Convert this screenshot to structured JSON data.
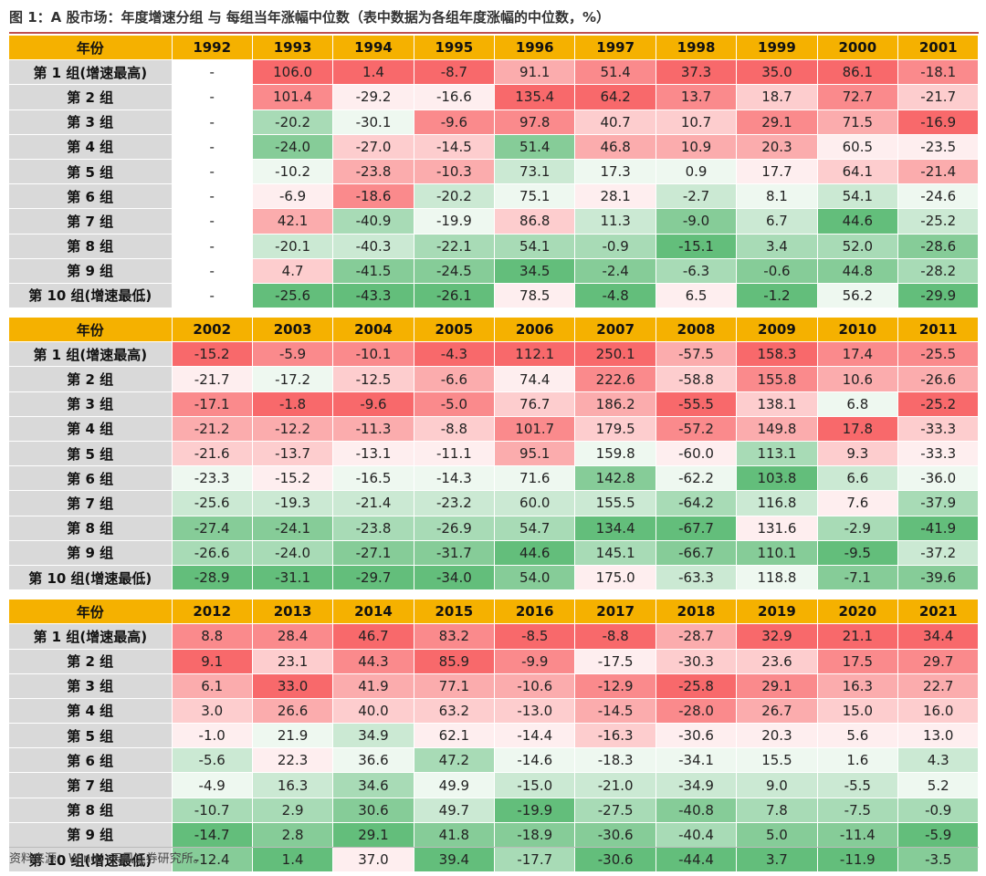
{
  "title": "图 1：A 股市场：年度增速分组 与 每组当年涨幅中位数（表中数据为各组年度涨幅的中位数，%）",
  "source": "资料来源：Wind，天风证券研究所。",
  "chart_data": {
    "type": "heatmap",
    "header_label": "年份",
    "groups": [
      "第 1 组(增速最高)",
      "第 2 组",
      "第 3 组",
      "第 4 组",
      "第 5 组",
      "第 6 组",
      "第 7 组",
      "第 8 组",
      "第 9 组",
      "第 10 组(增速最低)"
    ],
    "colors": {
      "high": "#f8696b",
      "mid": "#ffffff",
      "low": "#63be7b",
      "header": "#f5b100",
      "label_bg": "#d9d9d9"
    },
    "blocks": [
      {
        "years": [
          "1992",
          "1993",
          "1994",
          "1995",
          "1996",
          "1997",
          "1998",
          "1999",
          "2000",
          "2001"
        ],
        "rows": [
          [
            "-",
            "106.0",
            "1.4",
            "-8.7",
            "91.1",
            "51.4",
            "37.3",
            "35.0",
            "86.1",
            "-18.1"
          ],
          [
            "-",
            "101.4",
            "-29.2",
            "-16.6",
            "135.4",
            "64.2",
            "13.7",
            "18.7",
            "72.7",
            "-21.7"
          ],
          [
            "-",
            "-20.2",
            "-30.1",
            "-9.6",
            "97.8",
            "40.7",
            "10.7",
            "29.1",
            "71.5",
            "-16.9"
          ],
          [
            "-",
            "-24.0",
            "-27.0",
            "-14.5",
            "51.4",
            "46.8",
            "10.9",
            "20.3",
            "60.5",
            "-23.5"
          ],
          [
            "-",
            "-10.2",
            "-23.8",
            "-10.3",
            "73.1",
            "17.3",
            "0.9",
            "17.7",
            "64.1",
            "-21.4"
          ],
          [
            "-",
            "-6.9",
            "-18.6",
            "-20.2",
            "75.1",
            "28.1",
            "-2.7",
            "8.1",
            "54.1",
            "-24.6"
          ],
          [
            "-",
            "42.1",
            "-40.9",
            "-19.9",
            "86.8",
            "11.3",
            "-9.0",
            "6.7",
            "44.6",
            "-25.2"
          ],
          [
            "-",
            "-20.1",
            "-40.3",
            "-22.1",
            "54.1",
            "-0.9",
            "-15.1",
            "3.4",
            "52.0",
            "-28.6"
          ],
          [
            "-",
            "4.7",
            "-41.5",
            "-24.5",
            "34.5",
            "-2.4",
            "-6.3",
            "-0.6",
            "44.8",
            "-28.2"
          ],
          [
            "-",
            "-25.6",
            "-43.3",
            "-26.1",
            "78.5",
            "-4.8",
            "6.5",
            "-1.2",
            "56.2",
            "-29.9"
          ]
        ]
      },
      {
        "years": [
          "2002",
          "2003",
          "2004",
          "2005",
          "2006",
          "2007",
          "2008",
          "2009",
          "2010",
          "2011"
        ],
        "rows": [
          [
            "-15.2",
            "-5.9",
            "-10.1",
            "-4.3",
            "112.1",
            "250.1",
            "-57.5",
            "158.3",
            "17.4",
            "-25.5"
          ],
          [
            "-21.7",
            "-17.2",
            "-12.5",
            "-6.6",
            "74.4",
            "222.6",
            "-58.8",
            "155.8",
            "10.6",
            "-26.6"
          ],
          [
            "-17.1",
            "-1.8",
            "-9.6",
            "-5.0",
            "76.7",
            "186.2",
            "-55.5",
            "138.1",
            "6.8",
            "-25.2"
          ],
          [
            "-21.2",
            "-12.2",
            "-11.3",
            "-8.8",
            "101.7",
            "179.5",
            "-57.2",
            "149.8",
            "17.8",
            "-33.3"
          ],
          [
            "-21.6",
            "-13.7",
            "-13.1",
            "-11.1",
            "95.1",
            "159.8",
            "-60.0",
            "113.1",
            "9.3",
            "-33.3"
          ],
          [
            "-23.3",
            "-15.2",
            "-16.5",
            "-14.3",
            "71.6",
            "142.8",
            "-62.2",
            "103.8",
            "6.6",
            "-36.0"
          ],
          [
            "-25.6",
            "-19.3",
            "-21.4",
            "-23.2",
            "60.0",
            "155.5",
            "-64.2",
            "116.8",
            "7.6",
            "-37.9"
          ],
          [
            "-27.4",
            "-24.1",
            "-23.8",
            "-26.9",
            "54.7",
            "134.4",
            "-67.7",
            "131.6",
            "-2.9",
            "-41.9"
          ],
          [
            "-26.6",
            "-24.0",
            "-27.1",
            "-31.7",
            "44.6",
            "145.1",
            "-66.7",
            "110.1",
            "-9.5",
            "-37.2"
          ],
          [
            "-28.9",
            "-31.1",
            "-29.7",
            "-34.0",
            "54.0",
            "175.0",
            "-63.3",
            "118.8",
            "-7.1",
            "-39.6"
          ]
        ]
      },
      {
        "years": [
          "2012",
          "2013",
          "2014",
          "2015",
          "2016",
          "2017",
          "2018",
          "2019",
          "2020",
          "2021"
        ],
        "rows": [
          [
            "8.8",
            "28.4",
            "46.7",
            "83.2",
            "-8.5",
            "-8.8",
            "-28.7",
            "32.9",
            "21.1",
            "34.4"
          ],
          [
            "9.1",
            "23.1",
            "44.3",
            "85.9",
            "-9.9",
            "-17.5",
            "-30.3",
            "23.6",
            "17.5",
            "29.7"
          ],
          [
            "6.1",
            "33.0",
            "41.9",
            "77.1",
            "-10.6",
            "-12.9",
            "-25.8",
            "29.1",
            "16.3",
            "22.7"
          ],
          [
            "3.0",
            "26.6",
            "40.0",
            "63.2",
            "-13.0",
            "-14.5",
            "-28.0",
            "26.7",
            "15.0",
            "16.0"
          ],
          [
            "-1.0",
            "21.9",
            "34.9",
            "62.1",
            "-14.4",
            "-16.3",
            "-30.6",
            "20.3",
            "5.6",
            "13.0"
          ],
          [
            "-5.6",
            "22.3",
            "36.6",
            "47.2",
            "-14.6",
            "-18.3",
            "-34.1",
            "15.5",
            "1.6",
            "4.3"
          ],
          [
            "-4.9",
            "16.3",
            "34.6",
            "49.9",
            "-15.0",
            "-21.0",
            "-34.9",
            "9.0",
            "-5.5",
            "5.2"
          ],
          [
            "-10.7",
            "2.9",
            "30.6",
            "49.7",
            "-19.9",
            "-27.5",
            "-40.8",
            "7.8",
            "-7.5",
            "-0.9"
          ],
          [
            "-14.7",
            "2.8",
            "29.1",
            "41.8",
            "-18.9",
            "-30.6",
            "-40.4",
            "5.0",
            "-11.4",
            "-5.9"
          ],
          [
            "-12.4",
            "1.4",
            "37.0",
            "39.4",
            "-17.7",
            "-30.6",
            "-44.4",
            "3.7",
            "-11.9",
            "-3.5"
          ]
        ]
      }
    ]
  }
}
